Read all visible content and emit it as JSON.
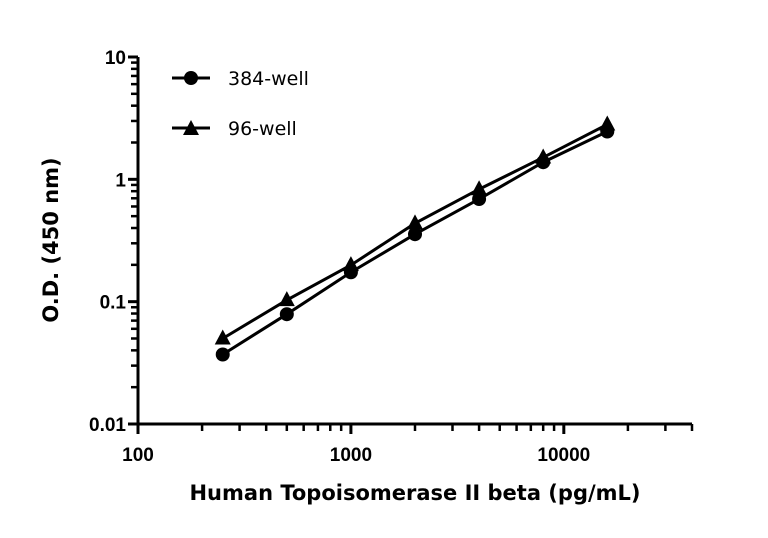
{
  "chart_data": {
    "type": "line",
    "title": "",
    "xlabel": "Human Topoisomerase II beta (pg/mL)",
    "ylabel": "O.D. (450 nm)",
    "xscale": "log",
    "yscale": "log",
    "xlim": [
      100,
      40000
    ],
    "ylim": [
      0.01,
      10
    ],
    "xticks": [
      "100",
      "1000",
      "10000"
    ],
    "yticks": [
      "0.01",
      "0.1",
      "1",
      "10"
    ],
    "grid": false,
    "legend_position": "top-left",
    "x": [
      250,
      500,
      1000,
      2000,
      4000,
      8000,
      16000
    ],
    "series": [
      {
        "name": "384-well",
        "marker": "circle",
        "values": [
          0.037,
          0.079,
          0.174,
          0.356,
          0.69,
          1.38,
          2.46
        ]
      },
      {
        "name": "96-well",
        "marker": "triangle",
        "values": [
          0.05,
          0.103,
          0.199,
          0.437,
          0.83,
          1.51,
          2.81
        ]
      }
    ],
    "color": "#000000"
  }
}
